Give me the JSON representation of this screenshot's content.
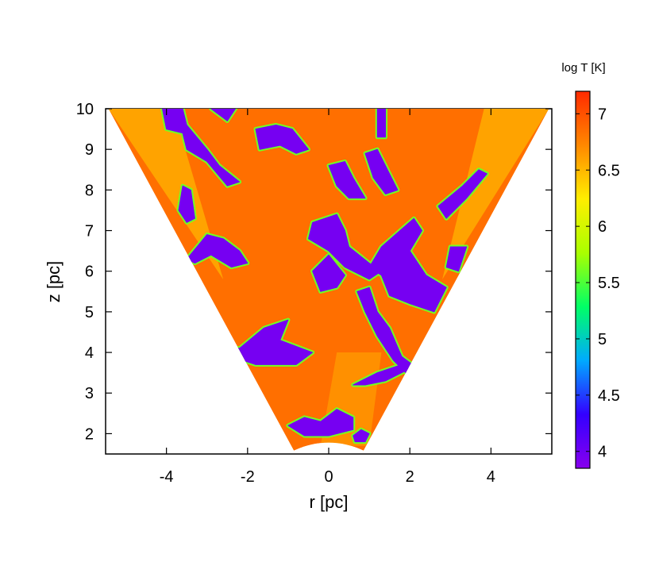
{
  "chart_data": {
    "type": "heatmap",
    "xlabel": "r [pc]",
    "ylabel": "z [pc]",
    "colorbar_label": "log T [K]",
    "xlim": [
      -5.5,
      5.5
    ],
    "ylim": [
      1.5,
      10
    ],
    "xticks": [
      -4,
      -2,
      0,
      2,
      4
    ],
    "yticks": [
      2,
      3,
      4,
      5,
      6,
      7,
      8,
      9,
      10
    ],
    "colorbar_range": [
      3.85,
      7.2
    ],
    "colorbar_ticks": [
      4,
      4.5,
      5,
      5.5,
      6,
      6.5,
      7
    ],
    "colormap": [
      "#8800ee",
      "#3300ff",
      "#00aaff",
      "#00ff66",
      "#aaff00",
      "#ffee00",
      "#ff8800",
      "#ff2a00"
    ],
    "wedge": {
      "inner_radius_pc": 1.8,
      "outer_z_pc": 10,
      "half_angle_deg": 28.5
    },
    "regions": {
      "hot_background_logT": 6.85,
      "cold_clumps_logT": 3.95,
      "clump_edge_logT": 5.6,
      "wedge_edge_logT": 6.55
    }
  }
}
